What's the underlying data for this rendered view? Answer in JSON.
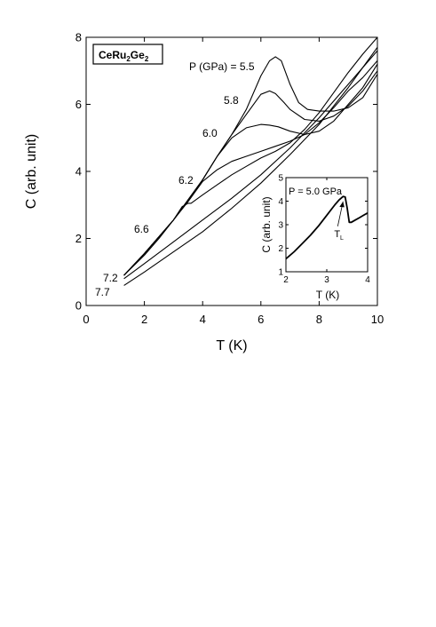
{
  "chart_data": [
    {
      "type": "line",
      "title": "",
      "xlabel": "T (K)",
      "ylabel": "C (arb. unit)",
      "xlim": [
        0,
        10
      ],
      "ylim": [
        0,
        8
      ],
      "x_ticks": [
        "0",
        "2",
        "4",
        "6",
        "8",
        "10"
      ],
      "y_ticks": [
        "0",
        "2",
        "4",
        "6",
        "8"
      ],
      "grid": false,
      "sample_label": "CeRu",
      "sample_sub1": "2",
      "sample_mid": "Ge",
      "sample_sub2": "2",
      "pressure_prefix": "P (GPa) = ",
      "series": [
        {
          "name": "5.5",
          "color": "#000000",
          "x": [
            1.3,
            2.0,
            2.5,
            3.0,
            3.5,
            4.0,
            4.5,
            5.0,
            5.5,
            6.0,
            6.3,
            6.5,
            6.7,
            7.0,
            7.3,
            7.6,
            8.0,
            8.5,
            9.0,
            9.5,
            10.0
          ],
          "y": [
            0.9,
            1.55,
            2.05,
            2.55,
            3.15,
            3.75,
            4.45,
            5.1,
            5.85,
            6.85,
            7.3,
            7.42,
            7.3,
            6.6,
            6.05,
            5.85,
            5.8,
            5.8,
            5.9,
            6.2,
            6.9
          ]
        },
        {
          "name": "5.8",
          "color": "#000000",
          "x": [
            1.3,
            2.0,
            2.5,
            3.0,
            3.5,
            4.0,
            4.5,
            5.0,
            5.5,
            6.0,
            6.3,
            6.5,
            6.8,
            7.0,
            7.5,
            8.0,
            8.5,
            9.0,
            9.5,
            10.0
          ],
          "y": [
            0.9,
            1.55,
            2.05,
            2.55,
            3.15,
            3.75,
            4.45,
            5.1,
            5.7,
            6.3,
            6.4,
            6.32,
            6.05,
            5.85,
            5.55,
            5.5,
            5.65,
            5.95,
            6.4,
            7.0
          ]
        },
        {
          "name": "6.0",
          "color": "#000000",
          "x": [
            1.3,
            2.0,
            2.5,
            3.0,
            3.5,
            4.0,
            4.5,
            5.0,
            5.5,
            6.0,
            6.3,
            6.6,
            7.0,
            7.5,
            8.0,
            8.5,
            9.0,
            9.5,
            10.0
          ],
          "y": [
            0.9,
            1.55,
            2.05,
            2.55,
            3.15,
            3.75,
            4.45,
            5.0,
            5.3,
            5.4,
            5.38,
            5.33,
            5.2,
            5.1,
            5.2,
            5.5,
            6.0,
            6.5,
            7.2
          ]
        },
        {
          "name": "6.2",
          "color": "#000000",
          "x": [
            1.3,
            2.0,
            2.5,
            3.0,
            3.5,
            4.0,
            4.5,
            5.0,
            5.5,
            6.0,
            6.5,
            7.0,
            7.5,
            8.0,
            8.5,
            9.0,
            9.5,
            10.0
          ],
          "y": [
            0.9,
            1.55,
            2.05,
            2.55,
            3.1,
            3.7,
            4.05,
            4.3,
            4.45,
            4.6,
            4.75,
            4.9,
            5.1,
            5.45,
            5.9,
            6.4,
            6.8,
            7.3
          ]
        },
        {
          "name": "6.6",
          "color": "#000000",
          "x": [
            1.3,
            2.0,
            2.5,
            3.0,
            3.3,
            3.5,
            3.6,
            4.0,
            4.5,
            5.0,
            5.5,
            6.0,
            6.5,
            7.0,
            7.5,
            8.0,
            8.5,
            9.0,
            9.5,
            10.0
          ],
          "y": [
            0.9,
            1.5,
            2.0,
            2.55,
            2.95,
            3.05,
            3.05,
            3.3,
            3.6,
            3.9,
            4.15,
            4.4,
            4.6,
            4.85,
            5.25,
            5.75,
            6.35,
            6.95,
            7.5,
            8.0
          ]
        },
        {
          "name": "7.2",
          "color": "#000000",
          "x": [
            1.3,
            2.0,
            3.0,
            4.0,
            5.0,
            6.0,
            7.0,
            8.0,
            9.0,
            10.0
          ],
          "y": [
            0.8,
            1.25,
            1.9,
            2.55,
            3.2,
            3.9,
            4.7,
            5.6,
            6.6,
            7.6
          ]
        },
        {
          "name": "7.7",
          "color": "#000000",
          "x": [
            1.3,
            2.0,
            3.0,
            4.0,
            5.0,
            6.0,
            7.0,
            8.0,
            9.0,
            10.0
          ],
          "y": [
            0.6,
            1.0,
            1.6,
            2.2,
            2.9,
            3.65,
            4.5,
            5.4,
            6.5,
            7.7
          ]
        }
      ]
    },
    {
      "type": "line",
      "title": "P = 5.0 GPa",
      "xlabel": "T (K)",
      "ylabel": "C (arb. unit)",
      "xlim": [
        2,
        4
      ],
      "ylim": [
        1,
        5
      ],
      "x_ticks": [
        "2",
        "3",
        "4"
      ],
      "y_ticks": [
        "1",
        "2",
        "3",
        "4",
        "5"
      ],
      "annotation": "T",
      "annotation_sub": "L",
      "annotation_x": 3.42,
      "annotation_y": 4.1,
      "series": [
        {
          "name": "",
          "color": "#000000",
          "x": [
            2.0,
            2.2,
            2.4,
            2.6,
            2.8,
            3.0,
            3.2,
            3.3,
            3.4,
            3.45,
            3.5,
            3.55,
            3.6,
            3.7,
            3.8,
            3.9,
            4.0
          ],
          "y": [
            1.55,
            1.85,
            2.2,
            2.55,
            2.95,
            3.4,
            3.85,
            4.05,
            4.2,
            4.18,
            3.7,
            3.1,
            3.1,
            3.2,
            3.3,
            3.4,
            3.5
          ]
        }
      ]
    }
  ]
}
